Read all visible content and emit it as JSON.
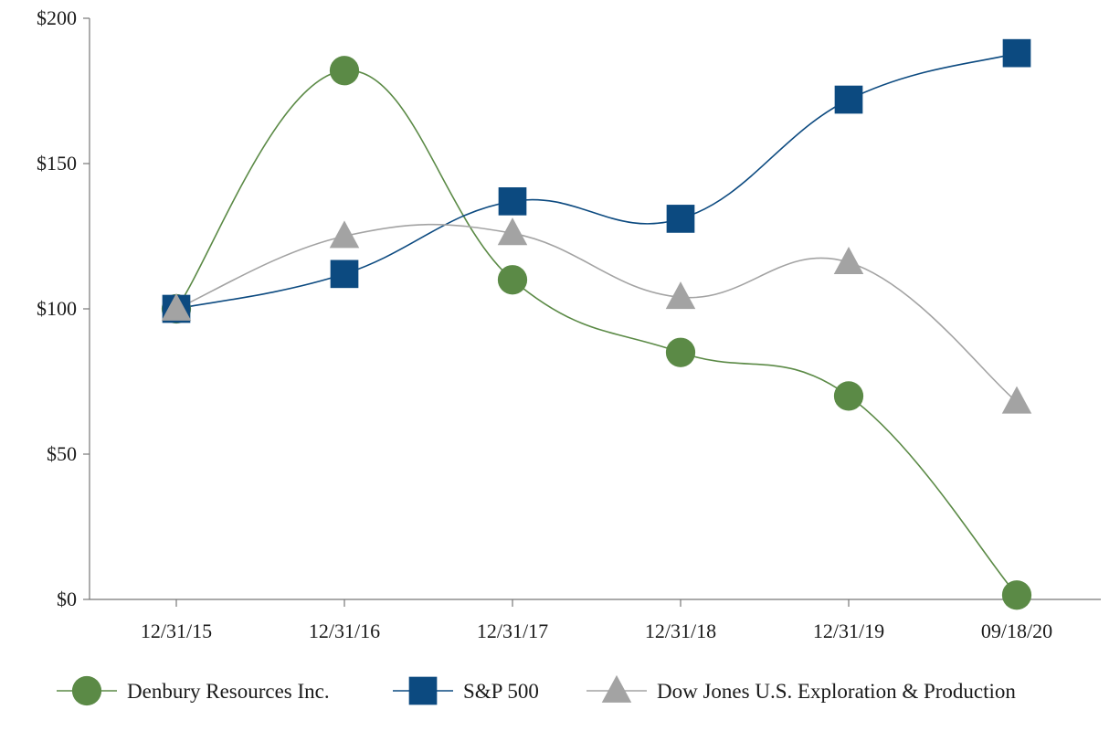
{
  "chart_data": {
    "type": "line",
    "title": "",
    "xlabel": "",
    "ylabel": "",
    "categories": [
      "12/31/15",
      "12/31/16",
      "12/31/17",
      "12/31/18",
      "12/31/19",
      "09/18/20"
    ],
    "ylim": [
      0,
      200
    ],
    "yticks": [
      0,
      50,
      100,
      150,
      200
    ],
    "ytick_labels": [
      "$0",
      "$50",
      "$100",
      "$150",
      "$200"
    ],
    "grid": false,
    "legend_position": "bottom",
    "series": [
      {
        "name": "Denbury Resources Inc.",
        "marker": "circle",
        "color": "#5b8a46",
        "values": [
          100,
          182,
          110,
          85,
          70,
          1.5
        ]
      },
      {
        "name": "S&P 500",
        "marker": "square",
        "color": "#0c4a80",
        "values": [
          100,
          112,
          137,
          131,
          172,
          188
        ]
      },
      {
        "name": "Dow Jones U.S. Exploration & Production",
        "marker": "triangle",
        "color": "#a3a3a3",
        "values": [
          100,
          125,
          126,
          104,
          116,
          68
        ]
      }
    ]
  }
}
